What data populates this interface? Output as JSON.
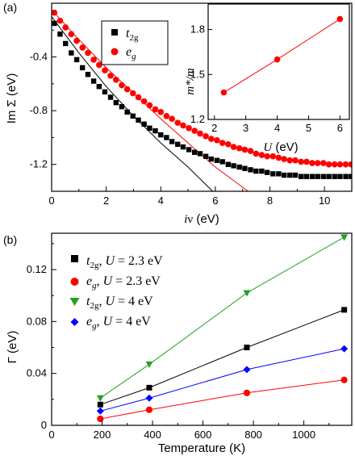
{
  "chart_data": [
    {
      "id": "a",
      "panel_label": "(a)",
      "type": "scatter",
      "xlabel": "iν (eV)",
      "ylabel": "Im Σ (eV)",
      "xlim": [
        0,
        11
      ],
      "ylim": [
        -1.4,
        0
      ],
      "xticks": [
        "0",
        "2",
        "4",
        "6",
        "8",
        "10"
      ],
      "yticks": [
        "-0.4",
        "-0.8",
        "-1.2"
      ],
      "legend": {
        "position": "top-left",
        "entries": [
          {
            "label": "t2g"
          },
          {
            "label": "eg"
          }
        ]
      },
      "series": [
        {
          "name": "t2g",
          "marker": "square",
          "color": "#000000",
          "points": [
            [
              0.1,
              -0.15
            ],
            [
              0.31,
              -0.23
            ],
            [
              0.51,
              -0.3
            ],
            [
              0.72,
              -0.37
            ],
            [
              0.92,
              -0.42
            ],
            [
              1.13,
              -0.48
            ],
            [
              1.33,
              -0.53
            ],
            [
              1.54,
              -0.58
            ],
            [
              1.74,
              -0.62
            ],
            [
              1.95,
              -0.66
            ],
            [
              2.16,
              -0.7
            ],
            [
              2.36,
              -0.74
            ],
            [
              2.57,
              -0.77
            ],
            [
              2.77,
              -0.81
            ],
            [
              2.98,
              -0.84
            ],
            [
              3.18,
              -0.87
            ],
            [
              3.39,
              -0.9
            ],
            [
              3.59,
              -0.93
            ],
            [
              3.8,
              -0.95
            ],
            [
              4.0,
              -0.98
            ],
            [
              4.21,
              -1.0
            ],
            [
              4.41,
              -1.03
            ],
            [
              4.62,
              -1.05
            ],
            [
              4.82,
              -1.07
            ],
            [
              5.03,
              -1.09
            ],
            [
              5.24,
              -1.11
            ],
            [
              5.44,
              -1.12
            ],
            [
              5.65,
              -1.14
            ],
            [
              5.85,
              -1.16
            ],
            [
              6.06,
              -1.17
            ],
            [
              6.26,
              -1.18
            ],
            [
              6.47,
              -1.2
            ],
            [
              6.67,
              -1.21
            ],
            [
              6.88,
              -1.22
            ],
            [
              7.08,
              -1.23
            ],
            [
              7.29,
              -1.24
            ],
            [
              7.49,
              -1.25
            ],
            [
              7.7,
              -1.25
            ],
            [
              7.9,
              -1.26
            ],
            [
              8.11,
              -1.27
            ],
            [
              8.32,
              -1.27
            ],
            [
              8.52,
              -1.28
            ],
            [
              8.73,
              -1.28
            ],
            [
              8.93,
              -1.28
            ],
            [
              9.14,
              -1.29
            ],
            [
              9.34,
              -1.29
            ],
            [
              9.55,
              -1.29
            ],
            [
              9.75,
              -1.29
            ],
            [
              9.96,
              -1.29
            ],
            [
              10.16,
              -1.29
            ],
            [
              10.37,
              -1.29
            ],
            [
              10.57,
              -1.29
            ],
            [
              10.78,
              -1.29
            ],
            [
              10.98,
              -1.29
            ]
          ]
        },
        {
          "name": "eg",
          "marker": "circle",
          "color": "#ff0000",
          "points": [
            [
              0.1,
              -0.07
            ],
            [
              0.31,
              -0.13
            ],
            [
              0.51,
              -0.18
            ],
            [
              0.72,
              -0.23
            ],
            [
              0.92,
              -0.28
            ],
            [
              1.13,
              -0.33
            ],
            [
              1.33,
              -0.37
            ],
            [
              1.54,
              -0.42
            ],
            [
              1.74,
              -0.46
            ],
            [
              1.95,
              -0.5
            ],
            [
              2.16,
              -0.54
            ],
            [
              2.36,
              -0.57
            ],
            [
              2.57,
              -0.61
            ],
            [
              2.77,
              -0.64
            ],
            [
              2.98,
              -0.67
            ],
            [
              3.18,
              -0.7
            ],
            [
              3.39,
              -0.73
            ],
            [
              3.59,
              -0.76
            ],
            [
              3.8,
              -0.79
            ],
            [
              4.0,
              -0.81
            ],
            [
              4.21,
              -0.84
            ],
            [
              4.41,
              -0.86
            ],
            [
              4.62,
              -0.89
            ],
            [
              4.82,
              -0.91
            ],
            [
              5.03,
              -0.93
            ],
            [
              5.24,
              -0.95
            ],
            [
              5.44,
              -0.97
            ],
            [
              5.65,
              -0.99
            ],
            [
              5.85,
              -1.01
            ],
            [
              6.06,
              -1.02
            ],
            [
              6.26,
              -1.04
            ],
            [
              6.47,
              -1.05
            ],
            [
              6.67,
              -1.07
            ],
            [
              6.88,
              -1.08
            ],
            [
              7.08,
              -1.09
            ],
            [
              7.29,
              -1.1
            ],
            [
              7.49,
              -1.12
            ],
            [
              7.7,
              -1.13
            ],
            [
              7.9,
              -1.14
            ],
            [
              8.11,
              -1.14
            ],
            [
              8.32,
              -1.15
            ],
            [
              8.52,
              -1.16
            ],
            [
              8.73,
              -1.17
            ],
            [
              8.93,
              -1.17
            ],
            [
              9.14,
              -1.18
            ],
            [
              9.34,
              -1.18
            ],
            [
              9.55,
              -1.19
            ],
            [
              9.75,
              -1.19
            ],
            [
              9.96,
              -1.19
            ],
            [
              10.16,
              -1.2
            ],
            [
              10.37,
              -1.2
            ],
            [
              10.57,
              -1.2
            ],
            [
              10.78,
              -1.2
            ],
            [
              10.98,
              -1.2
            ]
          ]
        }
      ],
      "fit_lines": [
        {
          "color": "#000000",
          "points": [
            [
              0,
              -0.1
            ],
            [
              1,
              -0.37
            ],
            [
              2,
              -0.62
            ],
            [
              3,
              -0.84
            ],
            [
              4,
              -1.04
            ],
            [
              5,
              -1.22
            ],
            [
              5.9,
              -1.4
            ]
          ]
        },
        {
          "color": "#ff0000",
          "points": [
            [
              0,
              -0.05
            ],
            [
              1,
              -0.27
            ],
            [
              2,
              -0.48
            ],
            [
              3,
              -0.67
            ],
            [
              4,
              -0.86
            ],
            [
              5,
              -1.04
            ],
            [
              6,
              -1.22
            ],
            [
              7,
              -1.37
            ],
            [
              7.2,
              -1.4
            ]
          ]
        }
      ]
    },
    {
      "id": "a-inset",
      "type": "line",
      "xlabel": "U (eV)",
      "ylabel": "m*/m",
      "xlim": [
        1.8,
        6.3
      ],
      "ylim": [
        1.2,
        1.97
      ],
      "xticks": [
        "2",
        "3",
        "4",
        "5",
        "6"
      ],
      "yticks": [
        "1.2",
        "1.5",
        "1.8"
      ],
      "series": [
        {
          "marker": "circle",
          "color": "#ff0000",
          "x": [
            2.3,
            4,
            6
          ],
          "y": [
            1.38,
            1.6,
            1.87
          ]
        }
      ]
    },
    {
      "id": "b",
      "panel_label": "(b)",
      "type": "line",
      "xlabel": "Temperature (K)",
      "ylabel": "Γ (eV)",
      "xlim": [
        0,
        1190
      ],
      "ylim": [
        0,
        0.148
      ],
      "xticks": [
        "0",
        "200",
        "400",
        "600",
        "800",
        "1000"
      ],
      "yticks": [
        "0",
        "0.04",
        "0.08",
        "0.12"
      ],
      "legend": {
        "position": "top-left",
        "entries": [
          {
            "label": "t2g, U = 2.3 eV"
          },
          {
            "label": "eg, U = 2.3 eV"
          },
          {
            "label": "t2g, U = 4 eV"
          },
          {
            "label": "eg, U = 4 eV"
          }
        ]
      },
      "series": [
        {
          "name": "t2g, U = 2.3 eV",
          "marker": "square",
          "color": "#000000",
          "x": [
            193,
            387,
            774,
            1160
          ],
          "y": [
            0.016,
            0.029,
            0.06,
            0.089
          ]
        },
        {
          "name": "eg, U = 2.3 eV",
          "marker": "circle",
          "color": "#ff0000",
          "x": [
            193,
            387,
            774,
            1160
          ],
          "y": [
            0.005,
            0.012,
            0.025,
            0.035
          ]
        },
        {
          "name": "t2g, U = 4 eV",
          "marker": "triangle-down",
          "color": "#22a022",
          "x": [
            193,
            387,
            774,
            1160
          ],
          "y": [
            0.021,
            0.047,
            0.102,
            0.145
          ]
        },
        {
          "name": "eg, U = 4 eV",
          "marker": "diamond",
          "color": "#0000ff",
          "x": [
            193,
            387,
            774,
            1160
          ],
          "y": [
            0.011,
            0.021,
            0.043,
            0.059
          ]
        }
      ]
    }
  ]
}
